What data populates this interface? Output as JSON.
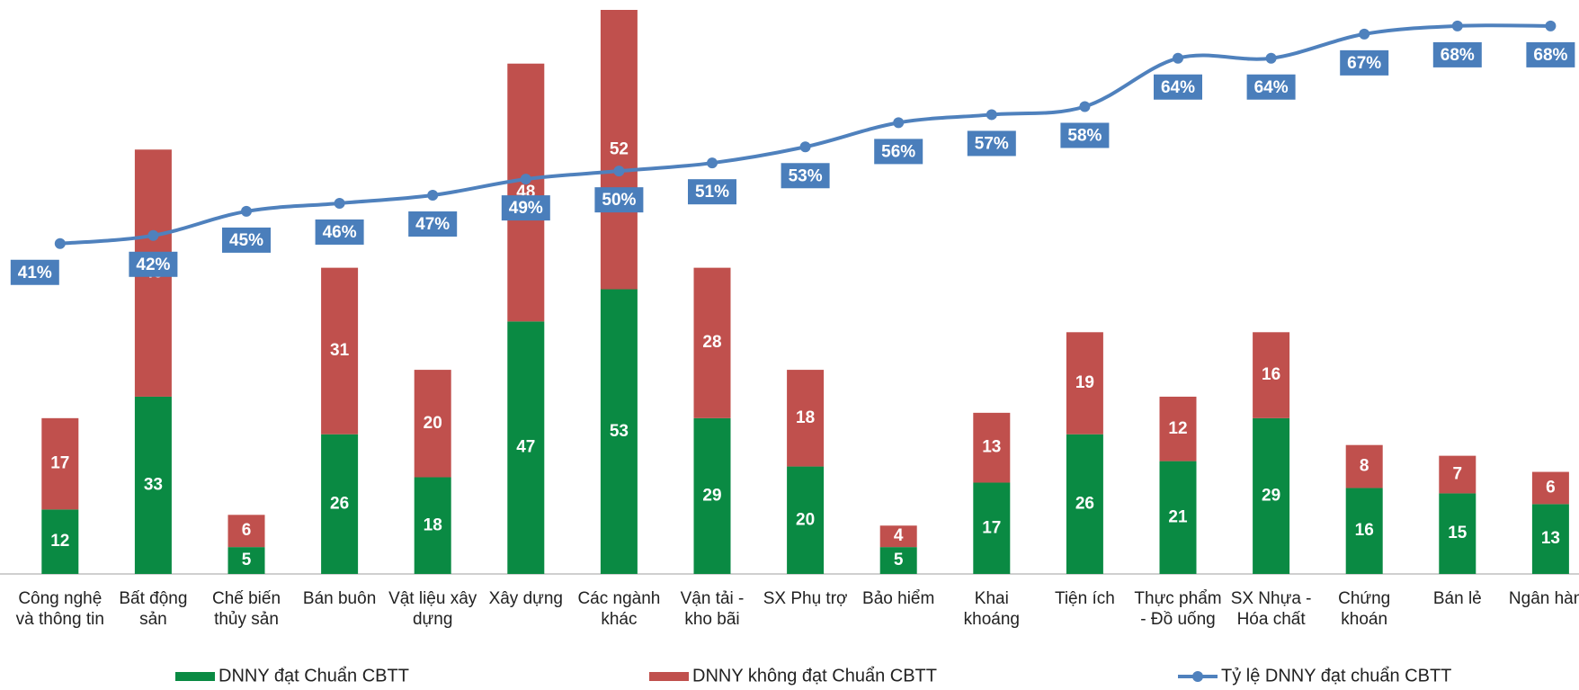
{
  "chart_data": {
    "type": "bar",
    "stacked": true,
    "categories": [
      "Công nghệ và thông tin",
      "Bất động sản",
      "Chế biến thủy sản",
      "Bán buôn",
      "Vật liệu xây dựng",
      "Xây dựng",
      "Các ngành khác",
      "Vận tải - kho bãi",
      "SX Phụ trợ",
      "Bảo hiểm",
      "Khai khoáng",
      "Tiện ích",
      "Thực phẩm - Đồ uống",
      "SX Nhựa - Hóa chất",
      "Chứng khoán",
      "Bán lẻ",
      "Ngân hàng"
    ],
    "series": [
      {
        "name": "DNNY đạt Chuẩn CBTT",
        "color": "#0a8a43",
        "values": [
          12,
          33,
          5,
          26,
          18,
          47,
          53,
          29,
          20,
          5,
          17,
          26,
          21,
          29,
          16,
          15,
          13
        ]
      },
      {
        "name": "DNNY không đạt Chuẩn CBTT",
        "color": "#c0504d",
        "values": [
          17,
          46,
          6,
          31,
          20,
          48,
          52,
          28,
          18,
          4,
          13,
          19,
          12,
          16,
          8,
          7,
          6
        ]
      },
      {
        "name": "Tỷ lệ DNNY đạt chuẩn CBTT",
        "type": "line",
        "axis": "y2",
        "color": "#4f81bd",
        "label_color": "#4a7ebb",
        "values": [
          41,
          42,
          45,
          46,
          47,
          49,
          50,
          51,
          53,
          56,
          57,
          58,
          64,
          64,
          67,
          68,
          68
        ],
        "value_labels": [
          "41%",
          "42%",
          "45%",
          "46%",
          "47%",
          "49%",
          "50%",
          "51%",
          "53%",
          "56%",
          "57%",
          "58%",
          "64%",
          "64%",
          "67%",
          "68%",
          "68%"
        ]
      }
    ],
    "ylim": [
      0,
      105
    ],
    "y2lim": [
      0,
      70
    ],
    "legend": "bottom"
  }
}
